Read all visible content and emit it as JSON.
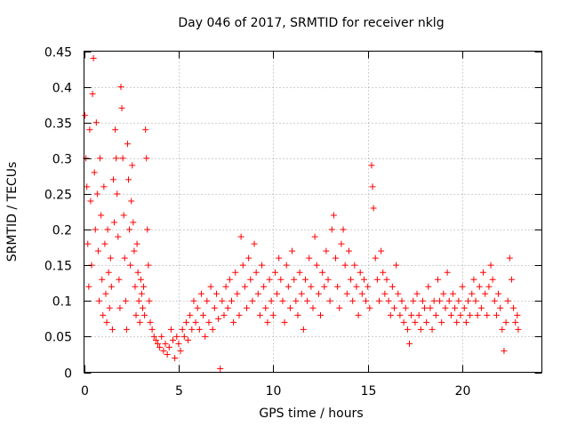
{
  "chart_data": {
    "type": "scatter",
    "title": "Day 046 of 2017, SRMTID for receiver nklg",
    "xlabel": "GPS time / hours",
    "ylabel": "SRMTID / TECUs",
    "xlim": [
      0,
      24.2
    ],
    "ylim": [
      0,
      0.45
    ],
    "xticks": [
      0,
      5,
      10,
      15,
      20
    ],
    "xtick_labels": [
      "0",
      "5",
      "10",
      "15",
      "20"
    ],
    "yticks": [
      0,
      0.05,
      0.1,
      0.15,
      0.2,
      0.25,
      0.3,
      0.35,
      0.4,
      0.45
    ],
    "ytick_labels": [
      "0",
      "0.05",
      "0.1",
      "0.15",
      "0.2",
      "0.25",
      "0.3",
      "0.35",
      "0.4",
      "0.45"
    ],
    "grid": true,
    "marker": "+",
    "color": "#ff0000",
    "series": [
      {
        "name": "SRMTID",
        "points": [
          [
            0.05,
            0.36
          ],
          [
            0.1,
            0.3
          ],
          [
            0.15,
            0.26
          ],
          [
            0.2,
            0.18
          ],
          [
            0.25,
            0.12
          ],
          [
            0.3,
            0.34
          ],
          [
            0.35,
            0.24
          ],
          [
            0.4,
            0.15
          ],
          [
            0.45,
            0.39
          ],
          [
            0.5,
            0.44
          ],
          [
            0.55,
            0.28
          ],
          [
            0.6,
            0.2
          ],
          [
            0.65,
            0.35
          ],
          [
            0.7,
            0.25
          ],
          [
            0.75,
            0.17
          ],
          [
            0.8,
            0.1
          ],
          [
            0.85,
            0.3
          ],
          [
            0.9,
            0.22
          ],
          [
            0.95,
            0.13
          ],
          [
            1.0,
            0.08
          ],
          [
            1.05,
            0.26
          ],
          [
            1.1,
            0.18
          ],
          [
            1.15,
            0.11
          ],
          [
            1.2,
            0.07
          ],
          [
            1.25,
            0.2
          ],
          [
            1.3,
            0.14
          ],
          [
            1.35,
            0.09
          ],
          [
            1.4,
            0.16
          ],
          [
            1.45,
            0.12
          ],
          [
            1.5,
            0.06
          ],
          [
            1.55,
            0.27
          ],
          [
            1.6,
            0.21
          ],
          [
            1.65,
            0.34
          ],
          [
            1.7,
            0.3
          ],
          [
            1.75,
            0.25
          ],
          [
            1.8,
            0.19
          ],
          [
            1.85,
            0.13
          ],
          [
            1.9,
            0.09
          ],
          [
            1.95,
            0.4
          ],
          [
            2.0,
            0.37
          ],
          [
            2.05,
            0.3
          ],
          [
            2.1,
            0.22
          ],
          [
            2.15,
            0.16
          ],
          [
            2.2,
            0.1
          ],
          [
            2.25,
            0.06
          ],
          [
            2.3,
            0.32
          ],
          [
            2.35,
            0.27
          ],
          [
            2.4,
            0.2
          ],
          [
            2.45,
            0.15
          ],
          [
            2.5,
            0.24
          ],
          [
            2.55,
            0.29
          ],
          [
            2.6,
            0.21
          ],
          [
            2.65,
            0.17
          ],
          [
            2.7,
            0.12
          ],
          [
            2.75,
            0.08
          ],
          [
            2.8,
            0.18
          ],
          [
            2.85,
            0.14
          ],
          [
            2.9,
            0.1
          ],
          [
            2.95,
            0.07
          ],
          [
            3.0,
            0.13
          ],
          [
            3.05,
            0.11
          ],
          [
            3.1,
            0.09
          ],
          [
            3.15,
            0.12
          ],
          [
            3.2,
            0.08
          ],
          [
            3.25,
            0.34
          ],
          [
            3.3,
            0.3
          ],
          [
            3.35,
            0.2
          ],
          [
            3.4,
            0.15
          ],
          [
            3.45,
            0.1
          ],
          [
            3.5,
            0.07
          ],
          [
            3.6,
            0.06
          ],
          [
            3.7,
            0.05
          ],
          [
            3.8,
            0.045
          ],
          [
            3.9,
            0.04
          ],
          [
            4.0,
            0.035
          ],
          [
            4.1,
            0.05
          ],
          [
            4.2,
            0.03
          ],
          [
            4.3,
            0.04
          ],
          [
            4.4,
            0.025
          ],
          [
            4.5,
            0.035
          ],
          [
            4.6,
            0.06
          ],
          [
            4.7,
            0.045
          ],
          [
            4.8,
            0.02
          ],
          [
            4.9,
            0.05
          ],
          [
            5.0,
            0.04
          ],
          [
            5.1,
            0.03
          ],
          [
            5.2,
            0.06
          ],
          [
            5.3,
            0.05
          ],
          [
            5.4,
            0.07
          ],
          [
            5.5,
            0.045
          ],
          [
            5.6,
            0.08
          ],
          [
            5.7,
            0.06
          ],
          [
            5.8,
            0.1
          ],
          [
            5.9,
            0.07
          ],
          [
            6.0,
            0.09
          ],
          [
            6.1,
            0.06
          ],
          [
            6.2,
            0.11
          ],
          [
            6.3,
            0.08
          ],
          [
            6.4,
            0.05
          ],
          [
            6.5,
            0.1
          ],
          [
            6.6,
            0.07
          ],
          [
            6.7,
            0.12
          ],
          [
            6.8,
            0.06
          ],
          [
            6.9,
            0.09
          ],
          [
            7.0,
            0.11
          ],
          [
            7.1,
            0.075
          ],
          [
            7.2,
            0.005
          ],
          [
            7.3,
            0.1
          ],
          [
            7.4,
            0.08
          ],
          [
            7.5,
            0.12
          ],
          [
            7.6,
            0.09
          ],
          [
            7.7,
            0.13
          ],
          [
            7.8,
            0.1
          ],
          [
            7.9,
            0.07
          ],
          [
            8.0,
            0.14
          ],
          [
            8.1,
            0.11
          ],
          [
            8.2,
            0.08
          ],
          [
            8.3,
            0.19
          ],
          [
            8.4,
            0.15
          ],
          [
            8.5,
            0.12
          ],
          [
            8.6,
            0.09
          ],
          [
            8.7,
            0.16
          ],
          [
            8.8,
            0.13
          ],
          [
            8.9,
            0.1
          ],
          [
            9.0,
            0.18
          ],
          [
            9.1,
            0.14
          ],
          [
            9.2,
            0.11
          ],
          [
            9.3,
            0.08
          ],
          [
            9.4,
            0.15
          ],
          [
            9.5,
            0.12
          ],
          [
            9.6,
            0.09
          ],
          [
            9.7,
            0.07
          ],
          [
            9.8,
            0.13
          ],
          [
            9.9,
            0.1
          ],
          [
            10.0,
            0.08
          ],
          [
            10.1,
            0.14
          ],
          [
            10.2,
            0.11
          ],
          [
            10.3,
            0.16
          ],
          [
            10.4,
            0.13
          ],
          [
            10.5,
            0.1
          ],
          [
            10.6,
            0.07
          ],
          [
            10.7,
            0.15
          ],
          [
            10.8,
            0.12
          ],
          [
            10.9,
            0.09
          ],
          [
            11.0,
            0.17
          ],
          [
            11.1,
            0.13
          ],
          [
            11.2,
            0.1
          ],
          [
            11.3,
            0.08
          ],
          [
            11.4,
            0.14
          ],
          [
            11.5,
            0.11
          ],
          [
            11.6,
            0.06
          ],
          [
            11.7,
            0.13
          ],
          [
            11.8,
            0.1
          ],
          [
            11.9,
            0.16
          ],
          [
            12.0,
            0.12
          ],
          [
            12.1,
            0.09
          ],
          [
            12.2,
            0.19
          ],
          [
            12.3,
            0.15
          ],
          [
            12.4,
            0.11
          ],
          [
            12.5,
            0.08
          ],
          [
            12.6,
            0.14
          ],
          [
            12.7,
            0.12
          ],
          [
            12.8,
            0.17
          ],
          [
            12.9,
            0.13
          ],
          [
            13.0,
            0.1
          ],
          [
            13.1,
            0.2
          ],
          [
            13.2,
            0.22
          ],
          [
            13.3,
            0.16
          ],
          [
            13.4,
            0.12
          ],
          [
            13.5,
            0.09
          ],
          [
            13.6,
            0.18
          ],
          [
            13.7,
            0.2
          ],
          [
            13.8,
            0.15
          ],
          [
            13.9,
            0.11
          ],
          [
            14.0,
            0.17
          ],
          [
            14.1,
            0.13
          ],
          [
            14.2,
            0.1
          ],
          [
            14.3,
            0.15
          ],
          [
            14.4,
            0.12
          ],
          [
            14.5,
            0.08
          ],
          [
            14.6,
            0.14
          ],
          [
            14.7,
            0.11
          ],
          [
            14.8,
            0.13
          ],
          [
            14.9,
            0.1
          ],
          [
            15.0,
            0.12
          ],
          [
            15.1,
            0.09
          ],
          [
            15.2,
            0.29
          ],
          [
            15.25,
            0.26
          ],
          [
            15.3,
            0.23
          ],
          [
            15.4,
            0.16
          ],
          [
            15.5,
            0.13
          ],
          [
            15.6,
            0.1
          ],
          [
            15.7,
            0.17
          ],
          [
            15.8,
            0.14
          ],
          [
            15.9,
            0.11
          ],
          [
            16.0,
            0.13
          ],
          [
            16.1,
            0.1
          ],
          [
            16.2,
            0.08
          ],
          [
            16.3,
            0.12
          ],
          [
            16.4,
            0.09
          ],
          [
            16.5,
            0.15
          ],
          [
            16.6,
            0.11
          ],
          [
            16.7,
            0.08
          ],
          [
            16.8,
            0.1
          ],
          [
            16.9,
            0.07
          ],
          [
            17.0,
            0.09
          ],
          [
            17.1,
            0.06
          ],
          [
            17.2,
            0.04
          ],
          [
            17.3,
            0.08
          ],
          [
            17.4,
            0.1
          ],
          [
            17.5,
            0.07
          ],
          [
            17.6,
            0.11
          ],
          [
            17.7,
            0.08
          ],
          [
            17.8,
            0.06
          ],
          [
            17.9,
            0.1
          ],
          [
            18.0,
            0.09
          ],
          [
            18.1,
            0.07
          ],
          [
            18.2,
            0.12
          ],
          [
            18.3,
            0.09
          ],
          [
            18.4,
            0.06
          ],
          [
            18.5,
            0.1
          ],
          [
            18.6,
            0.08
          ],
          [
            18.7,
            0.13
          ],
          [
            18.8,
            0.1
          ],
          [
            18.9,
            0.07
          ],
          [
            19.0,
            0.11
          ],
          [
            19.1,
            0.09
          ],
          [
            19.2,
            0.14
          ],
          [
            19.3,
            0.1
          ],
          [
            19.4,
            0.08
          ],
          [
            19.5,
            0.11
          ],
          [
            19.6,
            0.09
          ],
          [
            19.7,
            0.07
          ],
          [
            19.8,
            0.1
          ],
          [
            19.9,
            0.08
          ],
          [
            20.0,
            0.12
          ],
          [
            20.1,
            0.09
          ],
          [
            20.2,
            0.07
          ],
          [
            20.3,
            0.1
          ],
          [
            20.4,
            0.08
          ],
          [
            20.5,
            0.11
          ],
          [
            20.6,
            0.13
          ],
          [
            20.7,
            0.1
          ],
          [
            20.8,
            0.08
          ],
          [
            20.9,
            0.12
          ],
          [
            21.0,
            0.09
          ],
          [
            21.1,
            0.14
          ],
          [
            21.2,
            0.11
          ],
          [
            21.3,
            0.08
          ],
          [
            21.4,
            0.12
          ],
          [
            21.5,
            0.15
          ],
          [
            21.6,
            0.13
          ],
          [
            21.7,
            0.1
          ],
          [
            21.8,
            0.08
          ],
          [
            21.9,
            0.11
          ],
          [
            22.0,
            0.09
          ],
          [
            22.1,
            0.06
          ],
          [
            22.2,
            0.03
          ],
          [
            22.3,
            0.07
          ],
          [
            22.4,
            0.1
          ],
          [
            22.5,
            0.16
          ],
          [
            22.6,
            0.13
          ],
          [
            22.7,
            0.09
          ],
          [
            22.8,
            0.07
          ],
          [
            22.9,
            0.08
          ],
          [
            22.95,
            0.06
          ]
        ]
      }
    ]
  }
}
